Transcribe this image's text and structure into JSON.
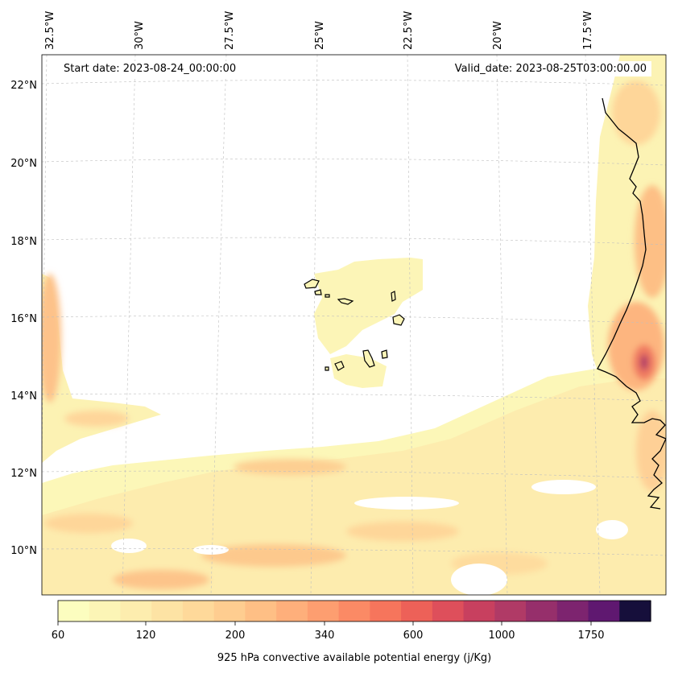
{
  "annotations": {
    "start_date": "Start date: 2023-08-24_00:00:00",
    "valid_date": "Valid_date: 2023-08-25T03:00:00.00"
  },
  "lat_labels": [
    "22°N",
    "20°N",
    "18°N",
    "16°N",
    "14°N",
    "12°N",
    "10°N"
  ],
  "lon_labels": [
    "32.5°W",
    "30°W",
    "27.5°W",
    "25°W",
    "22.5°W",
    "20°W",
    "17.5°W"
  ],
  "colorbar": {
    "label": "925 hPa convective available potential energy (j/Kg)",
    "tick_labels": [
      "60",
      "120",
      "200",
      "340",
      "600",
      "1000",
      "1750"
    ],
    "colors": [
      "#fcfdbf",
      "#fcf5b6",
      "#fdedae",
      "#fde3a4",
      "#fed99a",
      "#fecd90",
      "#febf85",
      "#feaf7b",
      "#fd9e70",
      "#fb8a65",
      "#f6755c",
      "#ed6158",
      "#de4f5b",
      "#c8405f",
      "#b03a66",
      "#962f6b",
      "#7d246f",
      "#5f1870",
      "#160f3b"
    ]
  },
  "map": {
    "field": "925 hPa convective available potential energy",
    "units": "j/Kg",
    "extent": {
      "lon_min": -32.7,
      "lon_max": -16.0,
      "lat_min": 8.8,
      "lat_max": 22.8
    }
  }
}
